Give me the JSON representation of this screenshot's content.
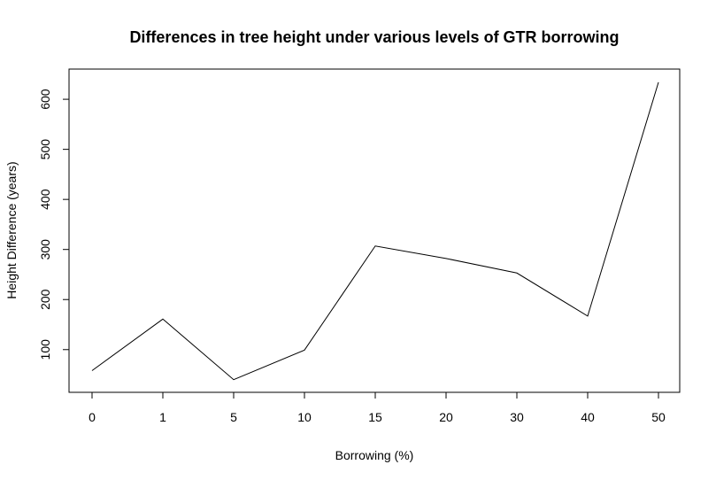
{
  "chart_data": {
    "type": "line",
    "title": "Differences in tree height under various levels of GTR borrowing",
    "xlabel": "Borrowing (%)",
    "ylabel": "Height Difference (years)",
    "categories": [
      "0",
      "1",
      "5",
      "10",
      "15",
      "20",
      "30",
      "40",
      "50"
    ],
    "series": [
      {
        "values": [
          58,
          161,
          40,
          99,
          307,
          282,
          253,
          167,
          634
        ]
      }
    ],
    "yticks": [
      100,
      200,
      300,
      400,
      500,
      600
    ],
    "ylim": [
      20,
      655
    ],
    "grid": false,
    "line_color": "#000000"
  }
}
